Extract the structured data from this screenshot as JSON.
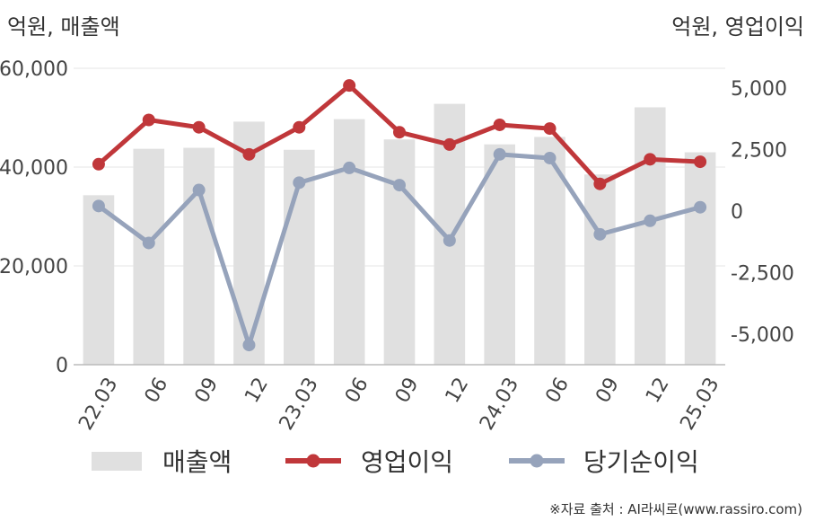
{
  "chart_data": {
    "type": "bar+line",
    "left_axis_unit": "억원, 매출액",
    "right_axis_unit": "억원, 영업이익",
    "categories": [
      "22.03",
      "06",
      "09",
      "12",
      "23.03",
      "06",
      "09",
      "12",
      "24.03",
      "06",
      "09",
      "12",
      "25.03"
    ],
    "left_ticks": [
      "60,000",
      "40,000",
      "20,000",
      "0"
    ],
    "right_ticks": [
      "5,000",
      "2,500",
      "0",
      "-2,500",
      "-5,000"
    ],
    "ylim_left": [
      0,
      60000
    ],
    "ylim_right": [
      -6250,
      5800
    ],
    "series": [
      {
        "name": "매출액",
        "type": "bar",
        "axis": "left",
        "color": "#e0e0e0",
        "values": [
          34300,
          43700,
          43900,
          49200,
          43500,
          49700,
          45600,
          52800,
          44600,
          46100,
          38500,
          52100,
          43000
        ]
      },
      {
        "name": "영업이익",
        "type": "line",
        "axis": "right",
        "color": "#c0373a",
        "values": [
          1900,
          3700,
          3400,
          2300,
          3400,
          5100,
          3200,
          2700,
          3500,
          3350,
          1100,
          2100,
          2000
        ]
      },
      {
        "name": "당기순이익",
        "type": "line",
        "axis": "right",
        "color": "#96a3bb",
        "values": [
          200,
          -1300,
          850,
          -5450,
          1150,
          1750,
          1050,
          -1200,
          2300,
          2150,
          -950,
          -400,
          150
        ]
      }
    ],
    "grid": "horizontal",
    "legend_position": "bottom"
  },
  "source_note": "※자료 출처 : AI라씨로(www.rassiro.com)"
}
